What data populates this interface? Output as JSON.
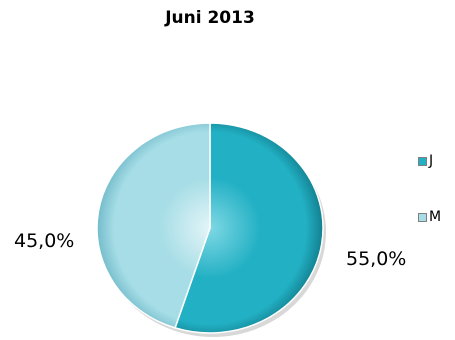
{
  "chart_data": {
    "type": "pie",
    "title": "Juni 2013",
    "slices": [
      {
        "label": "J",
        "value": 55.0,
        "display": "55,0%",
        "color": "#22b0c4",
        "highlight": "#7fd8e4",
        "shadow": "#12808f"
      },
      {
        "label": "M",
        "value": 45.0,
        "display": "45,0%",
        "color": "#a6dde6",
        "highlight": "#e3f5f8",
        "shadow": "#74bccb"
      }
    ],
    "start_angle_deg": 0,
    "direction": "clockwise",
    "legend_position": "right",
    "style": "3d-shaded"
  }
}
